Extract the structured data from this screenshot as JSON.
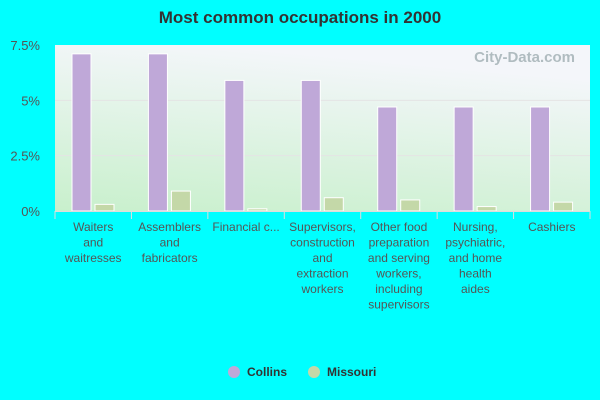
{
  "chart_data": {
    "type": "bar",
    "title": "Most common occupations in 2000",
    "categories": [
      "Waiters and waitresses",
      "Assemblers and fabricators",
      "Financial c...",
      "Supervisors, construction and extraction workers",
      "Other food preparation and serving workers, including supervisors",
      "Nursing, psychiatric, and home health aides",
      "Cashiers"
    ],
    "category_lines": [
      [
        "Waiters",
        "and",
        "waitresses"
      ],
      [
        "Assemblers",
        "and",
        "fabricators"
      ],
      [
        "Financial c..."
      ],
      [
        "Supervisors,",
        "construction",
        "and",
        "extraction",
        "workers"
      ],
      [
        "Other food",
        "preparation",
        "and serving",
        "workers,",
        "including",
        "supervisors"
      ],
      [
        "Nursing,",
        "psychiatric,",
        "and home",
        "health",
        "aides"
      ],
      [
        "Cashiers"
      ]
    ],
    "series": [
      {
        "name": "Collins",
        "color": "#bfa8d8",
        "values": [
          7.1,
          7.1,
          5.9,
          5.9,
          4.7,
          4.7,
          4.7
        ]
      },
      {
        "name": "Missouri",
        "color": "#c4d8a8",
        "values": [
          0.3,
          0.9,
          0.1,
          0.6,
          0.5,
          0.2,
          0.4
        ]
      }
    ],
    "yticks": [
      "0%",
      "2.5%",
      "5%",
      "7.5%"
    ],
    "ytick_values": [
      0,
      2.5,
      5,
      7.5
    ],
    "ylim": [
      0,
      7.5
    ],
    "grid": true,
    "legend": "bottom",
    "watermark": "City-Data.com"
  }
}
